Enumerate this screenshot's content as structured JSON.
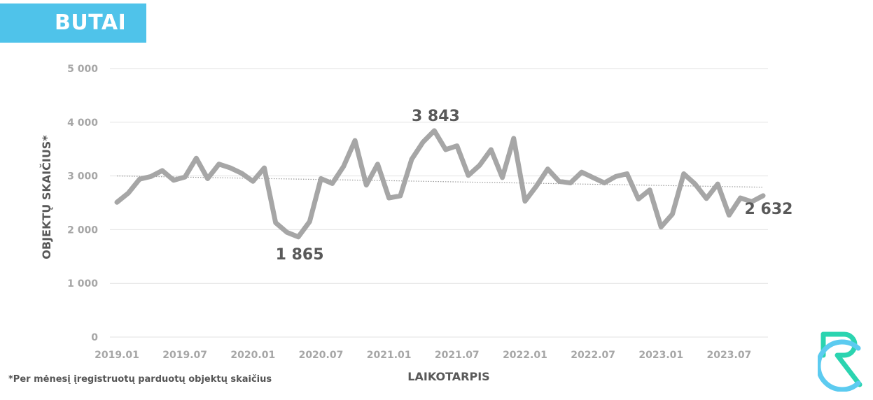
{
  "header": {
    "title": "BUTAI"
  },
  "footnote": "*Per mėnesį įregistruotų parduotų objektų skaičius",
  "colors": {
    "title_bg": "#4fc3ea",
    "line": "#a6a6a6",
    "grid": "#e2e2e2",
    "axis_text": "#a6a6a6",
    "label_text": "#595959",
    "logo_teal": "#2bd4b0",
    "logo_blue": "#5ccbf0"
  },
  "logo": {
    "icon": "rc-logo-icon"
  },
  "chart_data": {
    "type": "line",
    "xlabel": "LAIKOTARPIS",
    "ylabel": "OBJEKTŲ SKAIČIUS*",
    "ylim": [
      0,
      5000
    ],
    "yticks": [
      0,
      1000,
      2000,
      3000,
      4000,
      5000
    ],
    "ytick_labels": [
      "0",
      "1 000",
      "2 000",
      "3 000",
      "4 000",
      "5 000"
    ],
    "xtick_labels": [
      "2019.01",
      "2019.07",
      "2020.01",
      "2020.07",
      "2021.01",
      "2021.07",
      "2022.01",
      "2022.07",
      "2023.01",
      "2023.07"
    ],
    "grid": true,
    "trendline": {
      "style": "dotted",
      "start": 3000,
      "end": 2790
    },
    "series": [
      {
        "values": [
          2510,
          2680,
          2940,
          2990,
          3100,
          2920,
          2980,
          3330,
          2950,
          3220,
          3150,
          3050,
          2900,
          3150,
          2130,
          1950,
          1865,
          2150,
          2950,
          2860,
          3180,
          3660,
          2830,
          3220,
          2590,
          2630,
          3310,
          3630,
          3843,
          3490,
          3560,
          3010,
          3200,
          3490,
          2970,
          3700,
          2530,
          2810,
          3130,
          2900,
          2870,
          3070,
          2970,
          2870,
          2990,
          3040,
          2570,
          2740,
          2050,
          2290,
          3040,
          2850,
          2580,
          2850,
          2270,
          2590,
          2520,
          2632
        ]
      }
    ],
    "annotations": [
      {
        "index": 16,
        "label": "1 865"
      },
      {
        "index": 28,
        "label": "3 843"
      },
      {
        "index": 57,
        "label": "2 632"
      }
    ]
  }
}
